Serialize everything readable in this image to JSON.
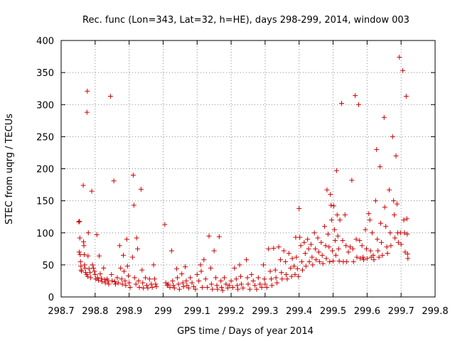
{
  "chart_data": {
    "type": "scatter",
    "title": "Rec. func (Lon=343, Lat=32, h=HE), days 298-299, 2014, window 003",
    "xlabel": "GPS time / Days of year 2014",
    "ylabel": "STEC from uqrg / TECUs",
    "xlim": [
      298.7,
      299.8
    ],
    "ylim": [
      0,
      400
    ],
    "xticks": [
      "298.7",
      "298.8",
      "298.9",
      "299",
      "299.1",
      "299.2",
      "299.3",
      "299.4",
      "299.5",
      "299.6",
      "299.7",
      "299.8"
    ],
    "xtick_values": [
      298.7,
      298.8,
      298.9,
      299.0,
      299.1,
      299.2,
      299.3,
      299.4,
      299.5,
      299.6,
      299.7,
      299.8
    ],
    "yticks": [
      "0",
      "50",
      "100",
      "150",
      "200",
      "250",
      "300",
      "350",
      "400"
    ],
    "ytick_values": [
      0,
      50,
      100,
      150,
      200,
      250,
      300,
      350,
      400
    ],
    "grid": true,
    "marker": "+",
    "color": "#cc0000",
    "points": [
      [
        298.752,
        117
      ],
      [
        298.754,
        118
      ],
      [
        298.755,
        92
      ],
      [
        298.753,
        70
      ],
      [
        298.756,
        66
      ],
      [
        298.757,
        55
      ],
      [
        298.758,
        48
      ],
      [
        298.759,
        42
      ],
      [
        298.76,
        40
      ],
      [
        298.765,
        174
      ],
      [
        298.766,
        86
      ],
      [
        298.767,
        80
      ],
      [
        298.768,
        66
      ],
      [
        298.769,
        50
      ],
      [
        298.77,
        45
      ],
      [
        298.772,
        38
      ],
      [
        298.775,
        35
      ],
      [
        298.778,
        32
      ],
      [
        298.777,
        321
      ],
      [
        298.776,
        288
      ],
      [
        298.78,
        100
      ],
      [
        298.779,
        64
      ],
      [
        298.782,
        44
      ],
      [
        298.785,
        38
      ],
      [
        298.787,
        30
      ],
      [
        298.79,
        165
      ],
      [
        298.792,
        50
      ],
      [
        298.795,
        45
      ],
      [
        298.798,
        40
      ],
      [
        298.8,
        35
      ],
      [
        298.802,
        28
      ],
      [
        298.805,
        97
      ],
      [
        298.807,
        30
      ],
      [
        298.81,
        26
      ],
      [
        298.812,
        64
      ],
      [
        298.815,
        36
      ],
      [
        298.818,
        29
      ],
      [
        298.82,
        24
      ],
      [
        298.825,
        45
      ],
      [
        298.828,
        27
      ],
      [
        298.83,
        22
      ],
      [
        298.835,
        28
      ],
      [
        298.838,
        25
      ],
      [
        298.84,
        20
      ],
      [
        298.845,
        313
      ],
      [
        298.848,
        35
      ],
      [
        298.85,
        25
      ],
      [
        298.855,
        181
      ],
      [
        298.858,
        24
      ],
      [
        298.86,
        20
      ],
      [
        298.865,
        30
      ],
      [
        298.868,
        22
      ],
      [
        298.872,
        80
      ],
      [
        298.875,
        45
      ],
      [
        298.878,
        28
      ],
      [
        298.88,
        20
      ],
      [
        298.883,
        65
      ],
      [
        298.885,
        40
      ],
      [
        298.888,
        25
      ],
      [
        298.89,
        18
      ],
      [
        298.893,
        90
      ],
      [
        298.895,
        48
      ],
      [
        298.898,
        33
      ],
      [
        298.9,
        22
      ],
      [
        298.903,
        15
      ],
      [
        298.91,
        62
      ],
      [
        298.912,
        190
      ],
      [
        298.914,
        143
      ],
      [
        298.916,
        30
      ],
      [
        298.92,
        20
      ],
      [
        298.922,
        92
      ],
      [
        298.925,
        75
      ],
      [
        298.928,
        25
      ],
      [
        298.93,
        15
      ],
      [
        298.935,
        168
      ],
      [
        298.938,
        42
      ],
      [
        298.94,
        22
      ],
      [
        298.942,
        14
      ],
      [
        298.948,
        30
      ],
      [
        298.952,
        18
      ],
      [
        298.955,
        14
      ],
      [
        298.96,
        28
      ],
      [
        298.965,
        20
      ],
      [
        298.968,
        15
      ],
      [
        298.972,
        50
      ],
      [
        298.975,
        28
      ],
      [
        298.978,
        20
      ],
      [
        298.98,
        16
      ],
      [
        299.005,
        113
      ],
      [
        299.008,
        22
      ],
      [
        299.012,
        18
      ],
      [
        299.015,
        20
      ],
      [
        299.02,
        15
      ],
      [
        299.025,
        72
      ],
      [
        299.028,
        25
      ],
      [
        299.03,
        18
      ],
      [
        299.033,
        14
      ],
      [
        299.04,
        44
      ],
      [
        299.042,
        30
      ],
      [
        299.045,
        20
      ],
      [
        299.048,
        12
      ],
      [
        299.055,
        36
      ],
      [
        299.058,
        22
      ],
      [
        299.06,
        16
      ],
      [
        299.065,
        47
      ],
      [
        299.068,
        25
      ],
      [
        299.07,
        18
      ],
      [
        299.075,
        14
      ],
      [
        299.08,
        30
      ],
      [
        299.085,
        22
      ],
      [
        299.09,
        16
      ],
      [
        299.095,
        12
      ],
      [
        299.1,
        35
      ],
      [
        299.105,
        25
      ],
      [
        299.11,
        50
      ],
      [
        299.112,
        40
      ],
      [
        299.115,
        15
      ],
      [
        299.12,
        58
      ],
      [
        299.125,
        28
      ],
      [
        299.13,
        15
      ],
      [
        299.135,
        95
      ],
      [
        299.14,
        45
      ],
      [
        299.142,
        20
      ],
      [
        299.145,
        12
      ],
      [
        299.15,
        72
      ],
      [
        299.155,
        30
      ],
      [
        299.158,
        18
      ],
      [
        299.16,
        12
      ],
      [
        299.165,
        94
      ],
      [
        299.17,
        25
      ],
      [
        299.172,
        15
      ],
      [
        299.175,
        10
      ],
      [
        299.18,
        30
      ],
      [
        299.185,
        20
      ],
      [
        299.19,
        14
      ],
      [
        299.195,
        18
      ],
      [
        299.2,
        25
      ],
      [
        299.205,
        15
      ],
      [
        299.21,
        45
      ],
      [
        299.215,
        28
      ],
      [
        299.218,
        18
      ],
      [
        299.22,
        12
      ],
      [
        299.225,
        50
      ],
      [
        299.228,
        32
      ],
      [
        299.23,
        20
      ],
      [
        299.235,
        14
      ],
      [
        299.245,
        58
      ],
      [
        299.248,
        30
      ],
      [
        299.25,
        20
      ],
      [
        299.255,
        12
      ],
      [
        299.26,
        35
      ],
      [
        299.265,
        25
      ],
      [
        299.27,
        18
      ],
      [
        299.275,
        12
      ],
      [
        299.28,
        30
      ],
      [
        299.285,
        20
      ],
      [
        299.29,
        15
      ],
      [
        299.295,
        50
      ],
      [
        299.298,
        28
      ],
      [
        299.3,
        20
      ],
      [
        299.305,
        15
      ],
      [
        299.31,
        75
      ],
      [
        299.315,
        40
      ],
      [
        299.318,
        28
      ],
      [
        299.32,
        18
      ],
      [
        299.325,
        76
      ],
      [
        299.33,
        42
      ],
      [
        299.332,
        30
      ],
      [
        299.335,
        22
      ],
      [
        299.34,
        78
      ],
      [
        299.345,
        58
      ],
      [
        299.348,
        38
      ],
      [
        299.35,
        28
      ],
      [
        299.355,
        72
      ],
      [
        299.36,
        55
      ],
      [
        299.362,
        35
      ],
      [
        299.365,
        28
      ],
      [
        299.37,
        68
      ],
      [
        299.375,
        45
      ],
      [
        299.378,
        32
      ],
      [
        299.38,
        60
      ],
      [
        299.385,
        48
      ],
      [
        299.388,
        35
      ],
      [
        299.39,
        93
      ],
      [
        299.392,
        62
      ],
      [
        299.395,
        44
      ],
      [
        299.398,
        32
      ],
      [
        299.4,
        138
      ],
      [
        299.402,
        93
      ],
      [
        299.405,
        80
      ],
      [
        299.408,
        55
      ],
      [
        299.41,
        42
      ],
      [
        299.415,
        85
      ],
      [
        299.418,
        68
      ],
      [
        299.42,
        48
      ],
      [
        299.425,
        90
      ],
      [
        299.428,
        75
      ],
      [
        299.43,
        55
      ],
      [
        299.435,
        82
      ],
      [
        299.438,
        62
      ],
      [
        299.44,
        50
      ],
      [
        299.445,
        100
      ],
      [
        299.448,
        75
      ],
      [
        299.45,
        58
      ],
      [
        299.455,
        92
      ],
      [
        299.458,
        70
      ],
      [
        299.46,
        55
      ],
      [
        299.465,
        85
      ],
      [
        299.468,
        65
      ],
      [
        299.47,
        52
      ],
      [
        299.475,
        110
      ],
      [
        299.478,
        80
      ],
      [
        299.48,
        60
      ],
      [
        299.482,
        167
      ],
      [
        299.485,
        98
      ],
      [
        299.488,
        78
      ],
      [
        299.49,
        55
      ],
      [
        299.492,
        160
      ],
      [
        299.494,
        143
      ],
      [
        299.496,
        120
      ],
      [
        299.498,
        72
      ],
      [
        299.5,
        56
      ],
      [
        299.502,
        142
      ],
      [
        299.504,
        105
      ],
      [
        299.506,
        88
      ],
      [
        299.508,
        65
      ],
      [
        299.51,
        197
      ],
      [
        299.512,
        128
      ],
      [
        299.514,
        95
      ],
      [
        299.516,
        75
      ],
      [
        299.518,
        56
      ],
      [
        299.52,
        120
      ],
      [
        299.525,
        302
      ],
      [
        299.528,
        88
      ],
      [
        299.53,
        55
      ],
      [
        299.535,
        128
      ],
      [
        299.538,
        80
      ],
      [
        299.54,
        55
      ],
      [
        299.545,
        70
      ],
      [
        299.55,
        78
      ],
      [
        299.555,
        182
      ],
      [
        299.558,
        75
      ],
      [
        299.56,
        55
      ],
      [
        299.565,
        314
      ],
      [
        299.568,
        90
      ],
      [
        299.57,
        62
      ],
      [
        299.575,
        300
      ],
      [
        299.578,
        88
      ],
      [
        299.58,
        60
      ],
      [
        299.585,
        80
      ],
      [
        299.588,
        62
      ],
      [
        299.59,
        58
      ],
      [
        299.595,
        105
      ],
      [
        299.598,
        75
      ],
      [
        299.6,
        60
      ],
      [
        299.605,
        130
      ],
      [
        299.608,
        120
      ],
      [
        299.61,
        72
      ],
      [
        299.612,
        62
      ],
      [
        299.615,
        100
      ],
      [
        299.618,
        65
      ],
      [
        299.62,
        58
      ],
      [
        299.625,
        150
      ],
      [
        299.628,
        230
      ],
      [
        299.63,
        90
      ],
      [
        299.632,
        72
      ],
      [
        299.635,
        62
      ],
      [
        299.638,
        203
      ],
      [
        299.64,
        115
      ],
      [
        299.642,
        85
      ],
      [
        299.645,
        65
      ],
      [
        299.65,
        280
      ],
      [
        299.652,
        140
      ],
      [
        299.655,
        110
      ],
      [
        299.658,
        78
      ],
      [
        299.66,
        68
      ],
      [
        299.665,
        167
      ],
      [
        299.668,
        100
      ],
      [
        299.67,
        80
      ],
      [
        299.675,
        250
      ],
      [
        299.678,
        150
      ],
      [
        299.68,
        128
      ],
      [
        299.682,
        92
      ],
      [
        299.685,
        220
      ],
      [
        299.688,
        145
      ],
      [
        299.69,
        100
      ],
      [
        299.692,
        85
      ],
      [
        299.695,
        374
      ],
      [
        299.698,
        100
      ],
      [
        299.7,
        82
      ],
      [
        299.705,
        353
      ],
      [
        299.708,
        120
      ],
      [
        299.71,
        100
      ],
      [
        299.712,
        70
      ],
      [
        299.715,
        313
      ],
      [
        299.717,
        122
      ],
      [
        299.718,
        98
      ],
      [
        299.719,
        67
      ],
      [
        299.72,
        60
      ]
    ]
  }
}
